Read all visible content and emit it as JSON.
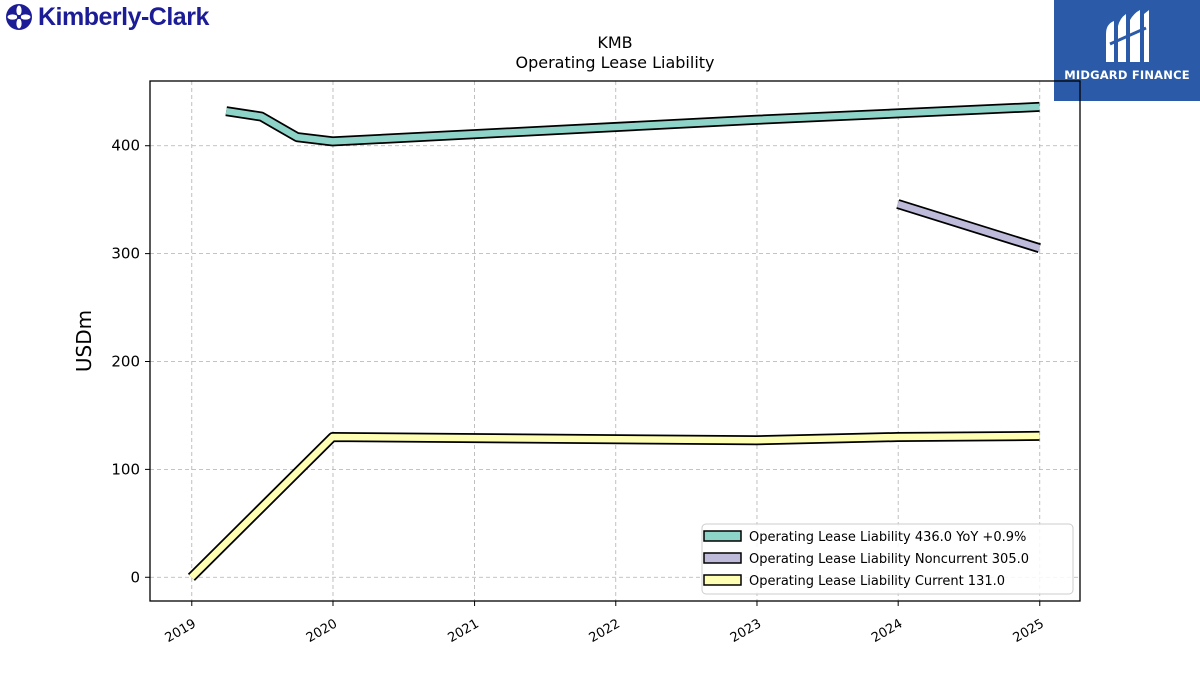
{
  "brand": {
    "name": "Kimberly-Clark",
    "icon": "kimberly-clark-emblem-icon",
    "color": "#1c1c96"
  },
  "publisher": {
    "name": "MIDGARD FINANCE",
    "icon": "midgard-finance-logo-icon",
    "color": "#2a5aa8"
  },
  "chart_data": {
    "type": "line",
    "title": "KMB",
    "subtitle": "Operating Lease Liability",
    "xlabel": "",
    "ylabel": "USDm",
    "x_ticks": [
      "2019",
      "2020",
      "2021",
      "2022",
      "2023",
      "2024",
      "2025"
    ],
    "y_ticks": [
      0,
      100,
      200,
      300,
      400
    ],
    "xlim": [
      "2018-09-15",
      "2025-04-15"
    ],
    "ylim": [
      -22,
      460
    ],
    "grid": true,
    "legend_position": "lower-right",
    "series": [
      {
        "name": "Operating Lease Liability",
        "legend_label": "Operating Lease Liability  436.0 YoY +0.9%",
        "color": "#8dd3c7",
        "points": [
          {
            "x": "2019-03-31",
            "y": 432
          },
          {
            "x": "2019-06-30",
            "y": 427
          },
          {
            "x": "2019-09-30",
            "y": 408
          },
          {
            "x": "2019-12-31",
            "y": 404
          },
          {
            "x": "2022-12-31",
            "y": 424
          },
          {
            "x": "2024-12-31",
            "y": 436
          }
        ]
      },
      {
        "name": "Operating Lease Liability Noncurrent",
        "legend_label": "Operating Lease Liability Noncurrent  305.0",
        "color": "#bebada",
        "points": [
          {
            "x": "2023-12-31",
            "y": 346
          },
          {
            "x": "2024-12-31",
            "y": 305
          }
        ]
      },
      {
        "name": "Operating Lease Liability Current",
        "legend_label": "Operating Lease Liability Current  131.0",
        "color": "#ffffb3",
        "points": [
          {
            "x": "2018-12-31",
            "y": 0
          },
          {
            "x": "2019-12-31",
            "y": 130
          },
          {
            "x": "2022-12-31",
            "y": 127
          },
          {
            "x": "2023-12-31",
            "y": 130
          },
          {
            "x": "2024-12-31",
            "y": 131
          }
        ]
      }
    ]
  }
}
